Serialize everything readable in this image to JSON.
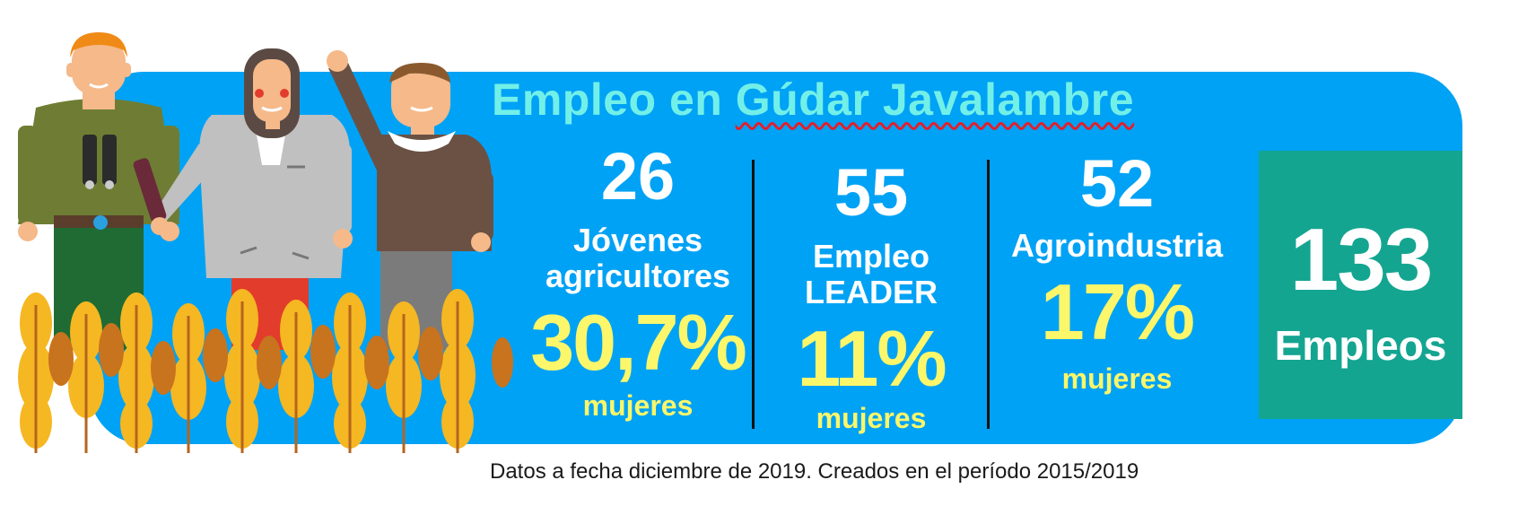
{
  "header": {
    "title_prefix": "Empleo en ",
    "title_place": "Gúdar Javalambre"
  },
  "stats": [
    {
      "count": "26",
      "label_lines": [
        "Jóvenes",
        "agricultores"
      ],
      "percent": "30,7%",
      "percent_label": "mujeres"
    },
    {
      "count": "55",
      "label_lines": [
        "Empleo",
        "LEADER"
      ],
      "percent": "11%",
      "percent_label": "mujeres"
    },
    {
      "count": "52",
      "label_lines": [
        "Agroindustria"
      ],
      "percent": "17%",
      "percent_label": "mujeres"
    }
  ],
  "total": {
    "count": "133",
    "label": "Empleos"
  },
  "footnote": "Datos a fecha diciembre de 2019. Creados en el período 2015/2019",
  "colors": {
    "panel": "#00a2f5",
    "title": "#72f0e8",
    "highlight": "#fbf66a",
    "total_box": "#14a591"
  }
}
